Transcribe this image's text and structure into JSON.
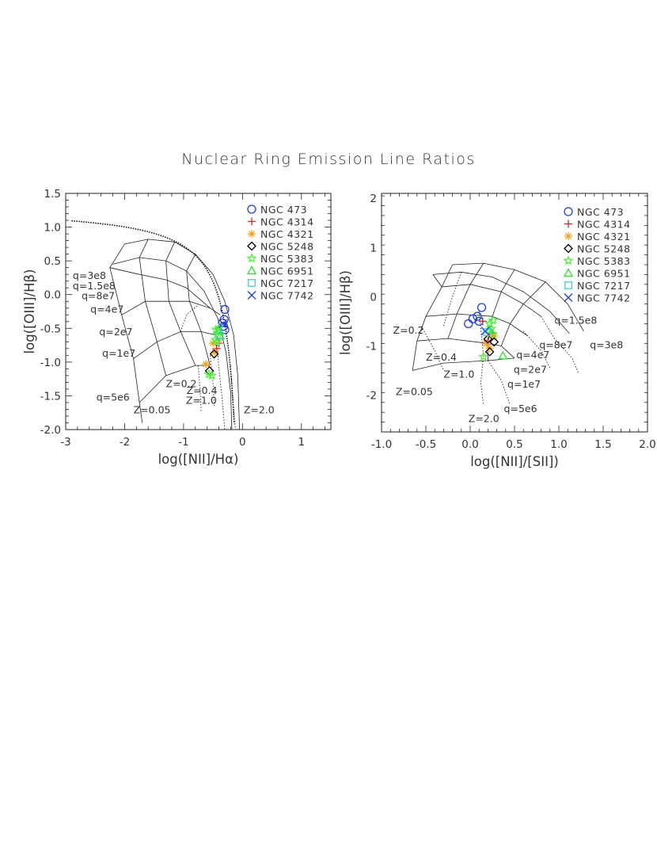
{
  "title": "Nuclear Ring Emission Line Ratios",
  "chart_data": [
    {
      "type": "scatter",
      "xlabel": "log([NII]/Hα)",
      "ylabel": "log([OIII]/Hβ)",
      "xlim": [
        -3,
        1.5
      ],
      "ylim": [
        -2.0,
        1.5
      ],
      "xticks": [
        -3,
        -2,
        -1,
        0,
        1
      ],
      "yticks": [
        -2.0,
        -1.5,
        -1.0,
        -0.5,
        0.0,
        0.5,
        1.0,
        1.5
      ],
      "legend_position": "top-right",
      "grid_labels": [
        {
          "text": "q=3e8",
          "x": -2.88,
          "y": 0.23
        },
        {
          "text": "q=1.5e8",
          "x": -2.88,
          "y": 0.08
        },
        {
          "text": "q=8e7",
          "x": -2.73,
          "y": -0.07
        },
        {
          "text": "q=4e7",
          "x": -2.58,
          "y": -0.27
        },
        {
          "text": "q=2e7",
          "x": -2.43,
          "y": -0.6
        },
        {
          "text": "q=1e7",
          "x": -2.38,
          "y": -0.92
        },
        {
          "text": "q=5e6",
          "x": -2.48,
          "y": -1.57
        },
        {
          "text": "Z=0.05",
          "x": -1.85,
          "y": -1.76
        },
        {
          "text": "Z=0.2",
          "x": -1.3,
          "y": -1.37
        },
        {
          "text": "Z=0.4",
          "x": -0.95,
          "y": -1.47
        },
        {
          "text": "Z=1.0",
          "x": -0.96,
          "y": -1.62
        },
        {
          "text": "Z=2.0",
          "x": 0.02,
          "y": -1.76
        }
      ],
      "series": [
        {
          "name": "NGC 473",
          "marker": "circle",
          "color": "#1f3fe0",
          "points": [
            [
              -0.3,
              -0.22
            ],
            [
              -0.31,
              -0.37
            ],
            [
              -0.34,
              -0.42
            ],
            [
              -0.32,
              -0.47
            ],
            [
              -0.3,
              -0.52
            ]
          ]
        },
        {
          "name": "NGC 4314",
          "marker": "plus",
          "color": "#e02020",
          "points": [
            [
              -0.4,
              -0.72
            ],
            [
              -0.44,
              -0.8
            ]
          ]
        },
        {
          "name": "NGC 4321",
          "marker": "asterisk",
          "color": "#f5a01a",
          "points": [
            [
              -0.62,
              -1.03
            ],
            [
              -0.5,
              -0.72
            ],
            [
              -0.47,
              -0.85
            ]
          ]
        },
        {
          "name": "NGC 5248",
          "marker": "diamond",
          "color": "#000000",
          "points": [
            [
              -0.56,
              -1.13
            ],
            [
              -0.48,
              -0.88
            ]
          ]
        },
        {
          "name": "NGC 5383",
          "marker": "star",
          "color": "#52f03a",
          "points": [
            [
              -0.52,
              -1.2
            ],
            [
              -0.45,
              -0.52
            ],
            [
              -0.4,
              -0.5
            ],
            [
              -0.41,
              -0.61
            ],
            [
              -0.46,
              -0.67
            ],
            [
              -0.43,
              -0.7
            ],
            [
              -0.57,
              -1.18
            ]
          ]
        },
        {
          "name": "NGC 6951",
          "marker": "triangle",
          "color": "#30e030",
          "points": [
            [
              -0.41,
              -0.53
            ],
            [
              -0.38,
              -0.61
            ]
          ]
        },
        {
          "name": "NGC 7217",
          "marker": "square",
          "color": "#3fd3c8",
          "points": [
            [
              -0.39,
              -0.6
            ]
          ]
        },
        {
          "name": "NGC 7742",
          "marker": "cross",
          "color": "#1f3fe0",
          "points": [
            [
              -0.33,
              -0.43
            ]
          ]
        }
      ]
    },
    {
      "type": "scatter",
      "xlabel": "log([NII]/[SII])",
      "ylabel": "log([OIII]/Hβ)",
      "xlim": [
        -1.0,
        2.0
      ],
      "ylim": [
        -2.75,
        2.1
      ],
      "xticks": [
        -1.0,
        -0.5,
        0.0,
        0.5,
        1.0,
        1.5,
        2.0
      ],
      "yticks": [
        -2,
        -1,
        0,
        1,
        2
      ],
      "legend_position": "top-right",
      "grid_labels": [
        {
          "text": "q=1.5e8",
          "x": 0.95,
          "y": -0.55
        },
        {
          "text": "q=3e8",
          "x": 1.35,
          "y": -1.05
        },
        {
          "text": "q=8e7",
          "x": 0.78,
          "y": -1.05
        },
        {
          "text": "q=4e7",
          "x": 0.52,
          "y": -1.25
        },
        {
          "text": "q=2e7",
          "x": 0.49,
          "y": -1.55
        },
        {
          "text": "q=1e7",
          "x": 0.42,
          "y": -1.85
        },
        {
          "text": "q=5e6",
          "x": 0.38,
          "y": -2.35
        },
        {
          "text": "Z=0.2",
          "x": -0.87,
          "y": -0.75
        },
        {
          "text": "Z=0.4",
          "x": -0.5,
          "y": -1.3
        },
        {
          "text": "Z=1.0",
          "x": -0.3,
          "y": -1.65
        },
        {
          "text": "Z=0.05",
          "x": -0.84,
          "y": -2.0
        },
        {
          "text": "Z=2.0",
          "x": -0.02,
          "y": -2.55
        }
      ],
      "series": [
        {
          "name": "NGC 473",
          "marker": "circle",
          "color": "#1f3fe0",
          "points": [
            [
              -0.02,
              -0.55
            ],
            [
              0.03,
              -0.45
            ],
            [
              0.08,
              -0.4
            ],
            [
              0.1,
              -0.5
            ],
            [
              0.13,
              -0.22
            ]
          ]
        },
        {
          "name": "NGC 4314",
          "marker": "plus",
          "color": "#e02020",
          "points": [
            [
              0.2,
              -0.9
            ],
            [
              0.25,
              -0.75
            ],
            [
              0.14,
              -0.5
            ]
          ]
        },
        {
          "name": "NGC 4321",
          "marker": "asterisk",
          "color": "#f5a01a",
          "points": [
            [
              0.22,
              -1.05
            ],
            [
              0.27,
              -0.8
            ],
            [
              0.18,
              -0.95
            ]
          ]
        },
        {
          "name": "NGC 5248",
          "marker": "diamond",
          "color": "#000000",
          "points": [
            [
              0.22,
              -1.12
            ],
            [
              0.27,
              -0.92
            ],
            [
              0.2,
              -0.86
            ]
          ]
        },
        {
          "name": "NGC 5383",
          "marker": "star",
          "color": "#52f03a",
          "points": [
            [
              0.15,
              -1.22
            ],
            [
              0.22,
              -0.55
            ],
            [
              0.26,
              -0.48
            ],
            [
              0.24,
              -0.65
            ],
            [
              0.25,
              -0.75
            ]
          ]
        },
        {
          "name": "NGC 6951",
          "marker": "triangle",
          "color": "#30e030",
          "points": [
            [
              0.37,
              -1.2
            ],
            [
              0.22,
              -0.68
            ]
          ]
        },
        {
          "name": "NGC 7217",
          "marker": "square",
          "color": "#3fd3c8",
          "points": [
            [
              0.19,
              -0.72
            ]
          ]
        },
        {
          "name": "NGC 7742",
          "marker": "cross",
          "color": "#1f3fe0",
          "points": [
            [
              0.17,
              -0.7
            ]
          ]
        }
      ]
    }
  ]
}
